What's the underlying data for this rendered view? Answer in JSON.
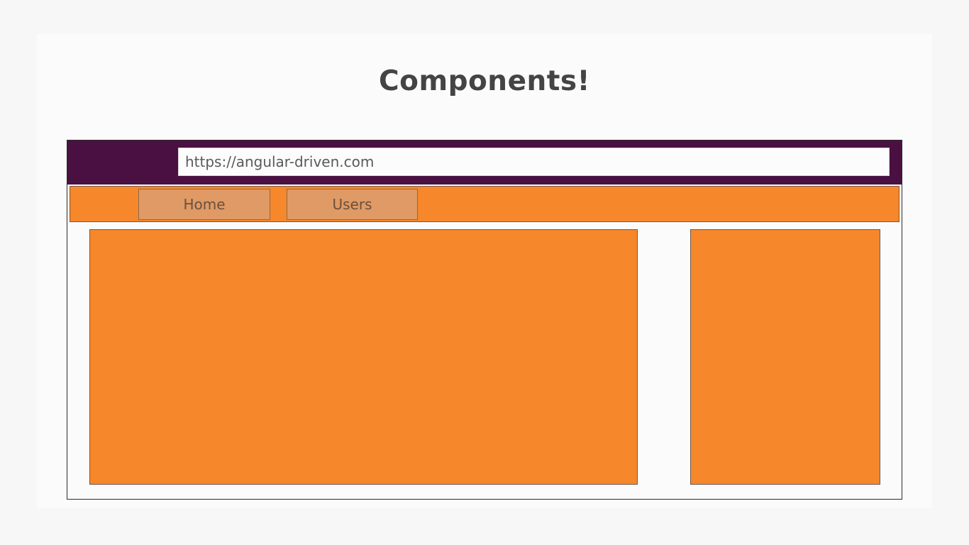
{
  "slide": {
    "title": "Components!"
  },
  "browser": {
    "url": "https://angular-driven.com"
  },
  "nav": {
    "items": [
      {
        "label": "Home"
      },
      {
        "label": "Users"
      }
    ]
  },
  "colors": {
    "topbar": "#4a1041",
    "component_fill": "#f6872b",
    "button_fill": "#df9a65",
    "title_text": "#444444"
  }
}
